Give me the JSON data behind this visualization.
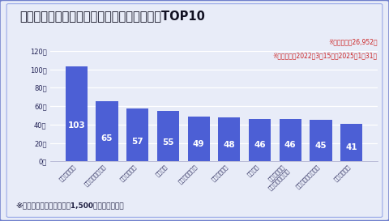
{
  "title": "退職代行モームリに最も多く利用された企業TOP10",
  "categories": [
    "人材派遣会社",
    "コンビニチェーン",
    "人材派遣会社",
    "運送会社",
    "自動車販売会社",
    "人材派遣会社",
    "運送会社",
    "医療・福祉・\n教育関連サービス",
    "食品製造・販売会社",
    "人材派遣会社"
  ],
  "values": [
    103,
    65,
    57,
    55,
    49,
    48,
    46,
    46,
    45,
    41
  ],
  "bar_color": "#4C5FD5",
  "ylabel_ticks": [
    "0回",
    "20回",
    "40回",
    "60回",
    "80回",
    "100回",
    "120回"
  ],
  "ytick_vals": [
    0,
    20,
    40,
    60,
    80,
    100,
    120
  ],
  "ylim": [
    0,
    120
  ],
  "note1": "※調査対象者26,952名",
  "note2": "※調査期間：2022年3月15日～2025年1月31日",
  "footnote": "※すべての企業が従業員数1,500名以上の大企業",
  "bg_color": "#E8ECF8",
  "border_color": "#7080CC",
  "inner_border_color": "#9aaae8",
  "axis_color": "#222255",
  "note_color": "#cc2222",
  "grid_color": "#ffffff",
  "title_fontsize": 10.5,
  "note_fontsize": 5.5,
  "footnote_fontsize": 6.5,
  "bar_label_fontsize": 7.5,
  "ytick_fontsize": 6,
  "xtick_fontsize": 5
}
